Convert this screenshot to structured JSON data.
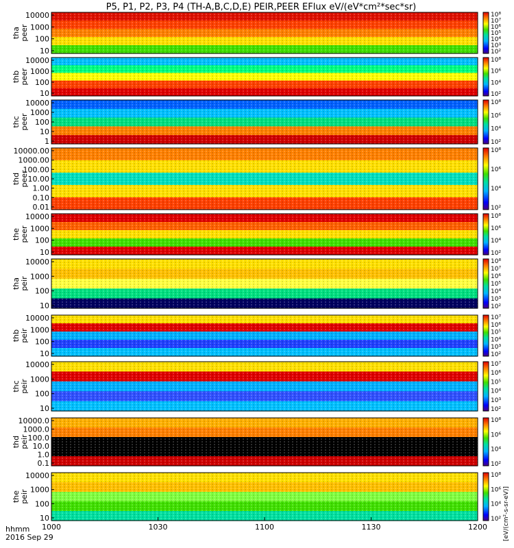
{
  "chart_data": {
    "type": "heatmap",
    "title": "P5, P1, P2, P3, P4 (TH-A,B,C,D,E) PEIR,PEER EFlux eV/(eV*cm²*sec*sr)",
    "date_label": "2016 Sep 29",
    "time_label": "hhmm",
    "x_ticks": [
      "1000",
      "1030",
      "1100",
      "1130",
      "1200"
    ],
    "x_range": [
      "10:00",
      "12:00"
    ],
    "colorbar_unit": "[eV/(cm²-s-sr-eV)]",
    "panels": [
      {
        "ylabel": [
          "tha",
          "peer"
        ],
        "yticks": [
          "10",
          "100",
          "1000",
          "10000"
        ],
        "scale": "log",
        "colorbar_ticks": [
          "10²",
          "10³",
          "10⁴",
          "10⁵",
          "10⁶",
          "10⁷",
          "10⁸"
        ]
      },
      {
        "ylabel": [
          "thb",
          "peer"
        ],
        "yticks": [
          "10",
          "100",
          "1000",
          "10000"
        ],
        "scale": "log",
        "colorbar_ticks": [
          "10²",
          "10⁴",
          "10⁶",
          "10⁸"
        ]
      },
      {
        "ylabel": [
          "thc",
          "peer"
        ],
        "yticks": [
          "1",
          "10",
          "100",
          "1000",
          "10000"
        ],
        "scale": "log",
        "colorbar_ticks": [
          "10²",
          "10⁴",
          "10⁶",
          "10⁸"
        ]
      },
      {
        "ylabel": [
          "thd",
          "peer"
        ],
        "yticks": [
          "0.01",
          "0.10",
          "1.00",
          "10.00",
          "100.00",
          "1000.00",
          "10000.00"
        ],
        "scale": "log",
        "colorbar_ticks": [
          "10²",
          "10⁴",
          "10⁶",
          "10⁸"
        ]
      },
      {
        "ylabel": [
          "the",
          "peer"
        ],
        "yticks": [
          "10",
          "100",
          "1000",
          "10000"
        ],
        "scale": "log",
        "colorbar_ticks": [
          "10²",
          "10⁴",
          "10⁶",
          "10⁸"
        ]
      },
      {
        "ylabel": [
          "tha",
          "peir"
        ],
        "yticks": [
          "10",
          "100",
          "1000",
          "10000"
        ],
        "scale": "log",
        "colorbar_ticks": [
          "10²",
          "10³",
          "10⁴",
          "10⁵",
          "10⁶",
          "10⁷",
          "10⁸"
        ]
      },
      {
        "ylabel": [
          "thb",
          "peir"
        ],
        "yticks": [
          "10",
          "100",
          "1000",
          "10000"
        ],
        "scale": "log",
        "colorbar_ticks": [
          "10²",
          "10³",
          "10⁴",
          "10⁵",
          "10⁶",
          "10⁷"
        ]
      },
      {
        "ylabel": [
          "thc",
          "peir"
        ],
        "yticks": [
          "10",
          "100",
          "1000",
          "10000"
        ],
        "scale": "log",
        "colorbar_ticks": [
          "10²",
          "10³",
          "10⁴",
          "10⁵",
          "10⁶",
          "10⁷"
        ]
      },
      {
        "ylabel": [
          "thd",
          "peir"
        ],
        "yticks": [
          "0.1",
          "1.0",
          "10.0",
          "100.0",
          "1000.0",
          "10000.0"
        ],
        "scale": "log",
        "colorbar_ticks": [
          "10²",
          "10⁴",
          "10⁶",
          "10⁸"
        ]
      },
      {
        "ylabel": [
          "the",
          "peir"
        ],
        "yticks": [
          "10",
          "100",
          "1000",
          "10000"
        ],
        "scale": "log",
        "colorbar_ticks": [
          "10²",
          "10⁴",
          "10⁶",
          "10⁸"
        ]
      }
    ]
  }
}
